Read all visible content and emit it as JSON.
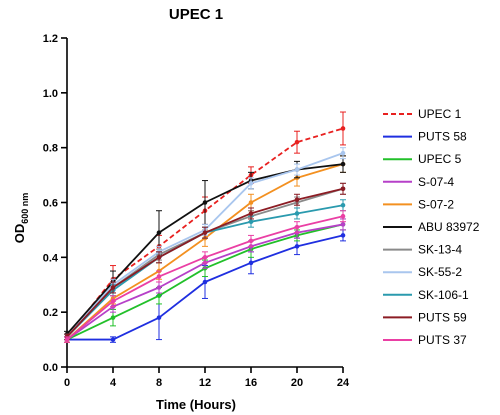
{
  "chart_data": {
    "type": "line",
    "title": "UPEC 1",
    "xlabel": "Time (Hours)",
    "ylabel": "OD",
    "ylabel_sub": "600 nm",
    "x": [
      0,
      4,
      8,
      12,
      16,
      20,
      24
    ],
    "xlim": [
      0,
      24
    ],
    "ylim": [
      0,
      1.2
    ],
    "xticks": [
      "0",
      "4",
      "8",
      "12",
      "16",
      "20",
      "24"
    ],
    "yticks": [
      "0.0",
      "0.2",
      "0.4",
      "0.6",
      "0.8",
      "1.0",
      "1.2"
    ],
    "grid": false,
    "legend_position": "right",
    "series": [
      {
        "name": "UPEC 1",
        "color": "#e8201f",
        "dashed": true,
        "values": [
          0.11,
          0.32,
          0.44,
          0.57,
          0.7,
          0.82,
          0.87
        ],
        "err": [
          0.01,
          0.05,
          0.04,
          0.05,
          0.03,
          0.04,
          0.06
        ]
      },
      {
        "name": "PUTS 58",
        "color": "#1f2fe0",
        "dashed": false,
        "values": [
          0.1,
          0.1,
          0.18,
          0.31,
          0.38,
          0.44,
          0.48
        ],
        "err": [
          0.01,
          0.01,
          0.08,
          0.06,
          0.04,
          0.03,
          0.02
        ]
      },
      {
        "name": "UPEC 5",
        "color": "#22c02a",
        "dashed": false,
        "values": [
          0.1,
          0.18,
          0.26,
          0.36,
          0.43,
          0.48,
          0.52
        ],
        "err": [
          0.01,
          0.03,
          0.03,
          0.03,
          0.03,
          0.02,
          0.02
        ]
      },
      {
        "name": "S-07-4",
        "color": "#b640c8",
        "dashed": false,
        "values": [
          0.1,
          0.22,
          0.29,
          0.38,
          0.44,
          0.49,
          0.52
        ],
        "err": [
          0.01,
          0.02,
          0.02,
          0.02,
          0.02,
          0.02,
          0.02
        ]
      },
      {
        "name": "S-07-2",
        "color": "#f39020",
        "dashed": false,
        "values": [
          0.1,
          0.25,
          0.35,
          0.47,
          0.6,
          0.69,
          0.74
        ],
        "err": [
          0.01,
          0.02,
          0.03,
          0.03,
          0.03,
          0.03,
          0.03
        ]
      },
      {
        "name": "ABU 83972",
        "color": "#111111",
        "dashed": false,
        "values": [
          0.12,
          0.31,
          0.49,
          0.6,
          0.68,
          0.72,
          0.74
        ],
        "err": [
          0.01,
          0.04,
          0.08,
          0.08,
          0.03,
          0.03,
          0.03
        ]
      },
      {
        "name": "SK-13-4",
        "color": "#8a8a8a",
        "dashed": false,
        "values": [
          0.11,
          0.29,
          0.41,
          0.49,
          0.55,
          0.6,
          0.65
        ],
        "err": [
          0.01,
          0.02,
          0.02,
          0.02,
          0.02,
          0.02,
          0.02
        ]
      },
      {
        "name": "SK-55-2",
        "color": "#a9c6ee",
        "dashed": false,
        "values": [
          0.11,
          0.3,
          0.42,
          0.5,
          0.67,
          0.72,
          0.78
        ],
        "err": [
          0.01,
          0.02,
          0.02,
          0.02,
          0.02,
          0.02,
          0.02
        ]
      },
      {
        "name": "SK-106-1",
        "color": "#2a9aae",
        "dashed": false,
        "values": [
          0.11,
          0.28,
          0.4,
          0.49,
          0.53,
          0.56,
          0.59
        ],
        "err": [
          0.01,
          0.02,
          0.02,
          0.02,
          0.02,
          0.02,
          0.02
        ]
      },
      {
        "name": "PUTS 59",
        "color": "#8c1c24",
        "dashed": false,
        "values": [
          0.11,
          0.29,
          0.4,
          0.49,
          0.56,
          0.61,
          0.65
        ],
        "err": [
          0.01,
          0.02,
          0.02,
          0.02,
          0.02,
          0.02,
          0.02
        ]
      },
      {
        "name": "PUTS 37",
        "color": "#ea3fa4",
        "dashed": false,
        "values": [
          0.1,
          0.24,
          0.33,
          0.4,
          0.46,
          0.51,
          0.55
        ],
        "err": [
          0.01,
          0.02,
          0.02,
          0.02,
          0.02,
          0.02,
          0.02
        ]
      }
    ]
  }
}
